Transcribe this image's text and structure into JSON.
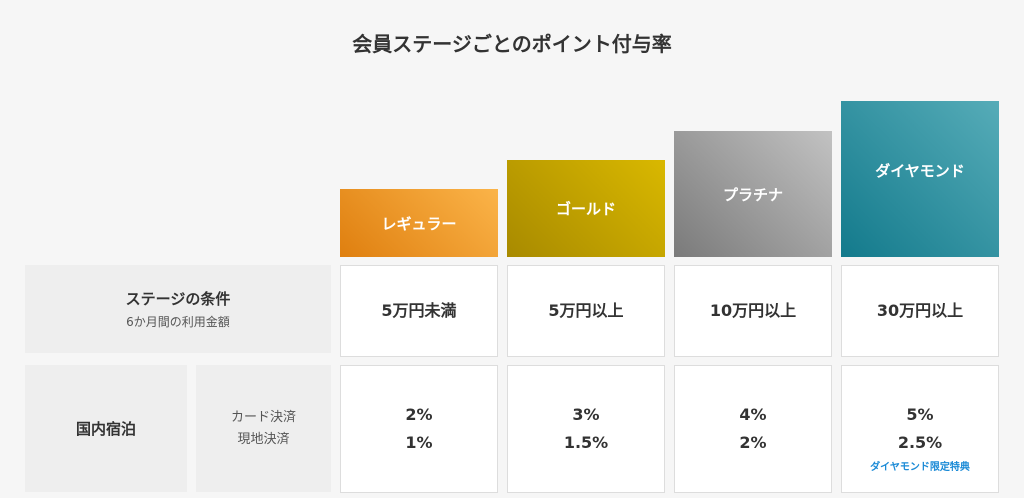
{
  "title": "会員ステージごとのポイント付与率",
  "stages": [
    {
      "name": "レギュラー",
      "condition": "5万円未満",
      "card_rate": "2%",
      "local_rate": "1%"
    },
    {
      "name": "ゴールド",
      "condition": "5万円以上",
      "card_rate": "3%",
      "local_rate": "1.5%"
    },
    {
      "name": "プラチナ",
      "condition": "10万円以上",
      "card_rate": "4%",
      "local_rate": "2%"
    },
    {
      "name": "ダイヤモンド",
      "condition": "30万円以上",
      "card_rate": "5%",
      "local_rate": "2.5%",
      "note": "ダイヤモンド限定特典"
    }
  ],
  "rows": {
    "condition_label": "ステージの条件",
    "condition_sub": "6か月間の利用金額",
    "domestic_label": "国内宿泊",
    "card_label": "カード決済",
    "local_label": "現地決済"
  },
  "colors": {
    "regular": "#f0a030",
    "gold": "#c8a800",
    "platinum": "#999999",
    "diamond": "#2a8f9f",
    "note": "#1a8ad6"
  }
}
